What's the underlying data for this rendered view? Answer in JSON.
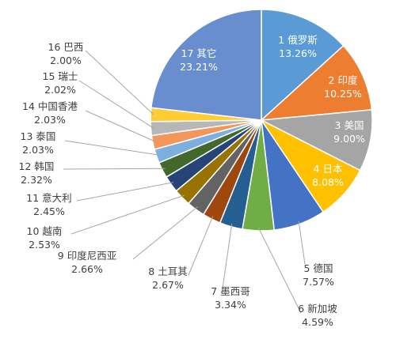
{
  "chart_data": {
    "type": "pie",
    "title": "",
    "legend": "none",
    "data_labels": "category name and percentage",
    "slices": [
      {
        "index": "1",
        "name": "俄罗斯",
        "value": 13.26,
        "label": "13.26%",
        "color": "#5b9bd5"
      },
      {
        "index": "2",
        "name": "印度",
        "value": 10.25,
        "label": "10.25%",
        "color": "#ed7d31"
      },
      {
        "index": "3",
        "name": "美国",
        "value": 9.0,
        "label": "9.00%",
        "color": "#a5a5a5"
      },
      {
        "index": "4",
        "name": "日本",
        "value": 8.08,
        "label": "8.08%",
        "color": "#ffc000"
      },
      {
        "index": "5",
        "name": "德国",
        "value": 7.57,
        "label": "7.57%",
        "color": "#4472c4"
      },
      {
        "index": "6",
        "name": "新加坡",
        "value": 4.59,
        "label": "4.59%",
        "color": "#70ad47"
      },
      {
        "index": "7",
        "name": "墨西哥",
        "value": 3.34,
        "label": "3.34%",
        "color": "#255e91"
      },
      {
        "index": "8",
        "name": "土耳其",
        "value": 2.67,
        "label": "2.67%",
        "color": "#9e480e"
      },
      {
        "index": "9",
        "name": "印度尼西亚",
        "value": 2.66,
        "label": "2.66%",
        "color": "#636363"
      },
      {
        "index": "10",
        "name": "越南",
        "value": 2.53,
        "label": "2.53%",
        "color": "#997300"
      },
      {
        "index": "11",
        "name": "意大利",
        "value": 2.45,
        "label": "2.45%",
        "color": "#264478"
      },
      {
        "index": "12",
        "name": "韩国",
        "value": 2.32,
        "label": "2.32%",
        "color": "#43682b"
      },
      {
        "index": "13",
        "name": "泰国",
        "value": 2.03,
        "label": "2.03%",
        "color": "#7cafdd"
      },
      {
        "index": "14",
        "name": "中国香港",
        "value": 2.03,
        "label": "2.03%",
        "color": "#f1975a"
      },
      {
        "index": "15",
        "name": "瑞士",
        "value": 2.02,
        "label": "2.02%",
        "color": "#b7b7b7"
      },
      {
        "index": "16",
        "name": "巴西",
        "value": 2.0,
        "label": "2.00%",
        "color": "#ffcd33"
      },
      {
        "index": "17",
        "name": "其它",
        "value": 23.21,
        "label": "23.21%",
        "color": "#698ed0"
      }
    ]
  }
}
